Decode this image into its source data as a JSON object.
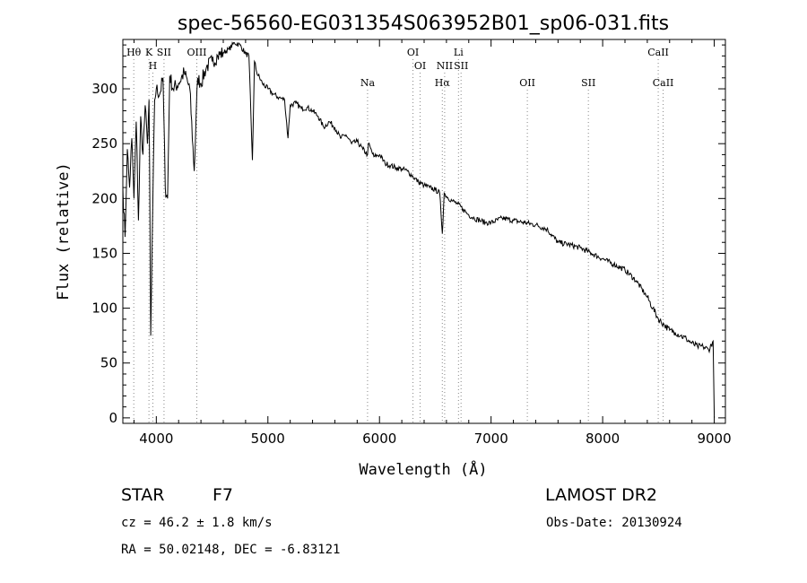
{
  "chart_data": {
    "type": "line",
    "title": "spec-56560-EG031354S063952B01_sp06-031.fits",
    "xlabel": "Wavelength (Å)",
    "ylabel": "Flux (relative)",
    "xlim": [
      3700,
      9100
    ],
    "ylim": [
      -5,
      345
    ],
    "x_ticks": [
      4000,
      5000,
      6000,
      7000,
      8000,
      9000
    ],
    "y_ticks": [
      0,
      50,
      100,
      150,
      200,
      250,
      300
    ],
    "grid": false,
    "series": [
      {
        "x": [
          3700,
          3720,
          3740,
          3760,
          3780,
          3800,
          3820,
          3840,
          3860,
          3880,
          3900,
          3920,
          3935,
          3950,
          3968,
          3985,
          4000,
          4030,
          4060,
          4080,
          4101,
          4120,
          4150,
          4200,
          4250,
          4300,
          4340,
          4370,
          4400,
          4450,
          4500,
          4550,
          4600,
          4650,
          4700,
          4750,
          4800,
          4830,
          4861,
          4880,
          4900,
          4950,
          5000,
          5050,
          5100,
          5150,
          5180,
          5200,
          5250,
          5300,
          5350,
          5400,
          5450,
          5500,
          5550,
          5600,
          5650,
          5700,
          5750,
          5800,
          5850,
          5893,
          5900,
          5950,
          6000,
          6050,
          6100,
          6150,
          6200,
          6250,
          6300,
          6350,
          6400,
          6450,
          6500,
          6540,
          6563,
          6580,
          6600,
          6650,
          6700,
          6750,
          6800,
          6850,
          6900,
          6950,
          7000,
          7100,
          7200,
          7300,
          7400,
          7500,
          7600,
          7700,
          7800,
          7900,
          8000,
          8100,
          8200,
          8300,
          8400,
          8450,
          8500,
          8550,
          8600,
          8650,
          8700,
          8750,
          8800,
          8850,
          8900,
          8950,
          8990,
          9000
        ],
        "values": [
          210,
          165,
          245,
          210,
          255,
          200,
          270,
          180,
          275,
          240,
          285,
          250,
          290,
          75,
          195,
          290,
          300,
          295,
          310,
          210,
          200,
          312,
          300,
          305,
          315,
          300,
          225,
          310,
          305,
          320,
          325,
          330,
          333,
          336,
          342,
          340,
          332,
          330,
          235,
          325,
          315,
          305,
          300,
          295,
          292,
          290,
          255,
          285,
          287,
          282,
          283,
          280,
          275,
          265,
          270,
          265,
          255,
          258,
          250,
          252,
          245,
          240,
          250,
          238,
          240,
          232,
          230,
          228,
          227,
          225,
          220,
          215,
          212,
          210,
          208,
          205,
          168,
          205,
          202,
          198,
          195,
          190,
          185,
          182,
          180,
          178,
          178,
          182,
          180,
          178,
          176,
          172,
          160,
          158,
          155,
          150,
          145,
          140,
          135,
          125,
          110,
          100,
          90,
          85,
          80,
          78,
          75,
          72,
          68,
          65,
          65,
          62,
          70,
          0
        ]
      }
    ],
    "lines_top": [
      {
        "label": "Hθ",
        "x": 3798
      },
      {
        "label": "K",
        "x": 3934
      },
      {
        "label": "SII",
        "x": 4069
      },
      {
        "label": "OIII",
        "x": 4363
      },
      {
        "label": "OI",
        "x": 6300
      },
      {
        "label": "Li",
        "x": 6708
      },
      {
        "label": "CaII",
        "x": 8498
      }
    ],
    "lines_mid": [
      {
        "label": "H",
        "x": 3969
      },
      {
        "label": "OI",
        "x": 6364
      },
      {
        "label": "NII",
        "x": 6584
      },
      {
        "label": "SII",
        "x": 6731
      }
    ],
    "lines_low": [
      {
        "label": "Na",
        "x": 5893
      },
      {
        "label": "Hα",
        "x": 6563
      },
      {
        "label": "OII",
        "x": 7325
      },
      {
        "label": "SII",
        "x": 7872
      },
      {
        "label": "CaII",
        "x": 8542
      }
    ]
  },
  "info": {
    "class": "STAR",
    "subclass": "F7",
    "survey": "LAMOST DR2",
    "cz": "cz = 46.2 ± 1.8 km/s",
    "obs_date": "Obs-Date: 20130924",
    "coords": "RA =  50.02148, DEC =  -6.83121"
  }
}
